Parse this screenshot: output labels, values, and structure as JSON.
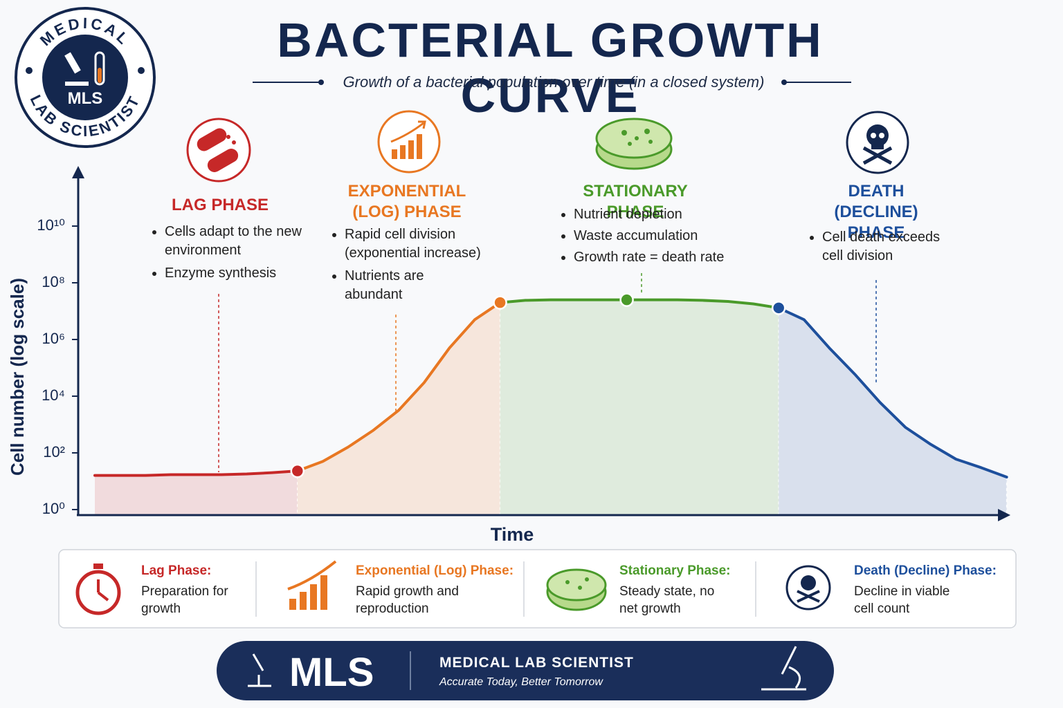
{
  "logo": {
    "top_text": "MEDICAL",
    "bottom_text": "LAB SCIENTIST",
    "badge": "MLS"
  },
  "chart_data": {
    "type": "line",
    "title": "BACTERIAL GROWTH CURVE",
    "subtitle": "Growth of a bacterial population over time (in a closed system)",
    "x_label": "Time",
    "y_label": "Cell number (log scale)",
    "y_log": true,
    "ylim": [
      1,
      1000000000000
    ],
    "yticks": [
      {
        "value": 1,
        "label": "10⁰"
      },
      {
        "value": 100,
        "label": "10²"
      },
      {
        "value": 10000,
        "label": "10⁴"
      },
      {
        "value": 1000000,
        "label": "10⁶"
      },
      {
        "value": 100000000,
        "label": "10⁸"
      },
      {
        "value": 10000000000,
        "label": "10¹⁰"
      }
    ],
    "categories": [
      null,
      null,
      null,
      null,
      null,
      null,
      null,
      null,
      null,
      null,
      null,
      null,
      null,
      null,
      null,
      null,
      null,
      null,
      null,
      null,
      null,
      null,
      null,
      null,
      null,
      null,
      null,
      null,
      null,
      null,
      null,
      null,
      null,
      null,
      null,
      null,
      null
    ],
    "series": [
      {
        "name": "LAG PHASE",
        "color": "#c62828",
        "values": [
          16,
          16,
          16,
          17,
          17,
          17,
          18,
          20,
          23,
          null,
          null,
          null,
          null,
          null,
          null,
          null,
          null,
          null,
          null,
          null,
          null,
          null,
          null,
          null,
          null,
          null,
          null,
          null,
          null,
          null,
          null,
          null,
          null,
          null,
          null,
          null,
          null
        ]
      },
      {
        "name": "EXPONENTIAL (LOG) PHASE",
        "color": "#e87722",
        "values": [
          null,
          null,
          null,
          null,
          null,
          null,
          null,
          null,
          23,
          50,
          160,
          630,
          3200,
          30000,
          500000,
          5000000,
          20000000,
          null,
          null,
          null,
          null,
          null,
          null,
          null,
          null,
          null,
          null,
          null,
          null,
          null,
          null,
          null,
          null,
          null,
          null,
          null,
          null
        ]
      },
      {
        "name": "STATIONARY PHASE",
        "color": "#4a9a2a",
        "values": [
          null,
          null,
          null,
          null,
          null,
          null,
          null,
          null,
          null,
          null,
          null,
          null,
          null,
          null,
          null,
          null,
          20000000,
          24000000,
          25000000,
          25000000,
          25000000,
          25000000,
          25000000,
          25000000,
          24000000,
          22000000,
          18000000,
          13000000,
          null,
          null,
          null,
          null,
          null,
          null,
          null,
          null,
          null
        ]
      },
      {
        "name": "DEATH (DECLINE) PHASE",
        "color": "#1d4f9c",
        "values": [
          null,
          null,
          null,
          null,
          null,
          null,
          null,
          null,
          null,
          null,
          null,
          null,
          null,
          null,
          null,
          null,
          null,
          null,
          null,
          null,
          null,
          null,
          null,
          null,
          null,
          null,
          null,
          13000000,
          5000000,
          500000,
          60000,
          6000,
          800,
          200,
          60,
          30,
          14
        ]
      }
    ],
    "markers": [
      {
        "series": 0,
        "index": 8
      },
      {
        "series": 1,
        "index": 16
      },
      {
        "series": 2,
        "index": 21
      },
      {
        "series": 3,
        "index": 27
      }
    ]
  },
  "phases": [
    {
      "bullets": [
        "Cells adapt to the new environment",
        "Enzyme synthesis"
      ]
    },
    {
      "bullets": [
        "Rapid cell division (exponential increase)",
        "Nutrients are abundant"
      ]
    },
    {
      "bullets": [
        "Nutrient depletion",
        "Waste accumulation",
        "Growth rate = death rate"
      ]
    },
    {
      "bullets": [
        "Cell death exceeds cell division"
      ]
    }
  ],
  "legend": {
    "items": [
      {
        "title": "Lag Phase:",
        "text": "Preparation for growth"
      },
      {
        "title": "Exponential (Log) Phase:",
        "text": "Rapid growth and reproduction"
      },
      {
        "title": "Stationary Phase:",
        "text": "Steady state, no net growth"
      },
      {
        "title": "Death (Decline) Phase:",
        "text": "Decline in viable cell count"
      }
    ]
  },
  "footer": {
    "badge": "MLS",
    "name": "MEDICAL LAB SCIENTIST",
    "tagline": "Accurate Today, Better Tomorrow"
  }
}
